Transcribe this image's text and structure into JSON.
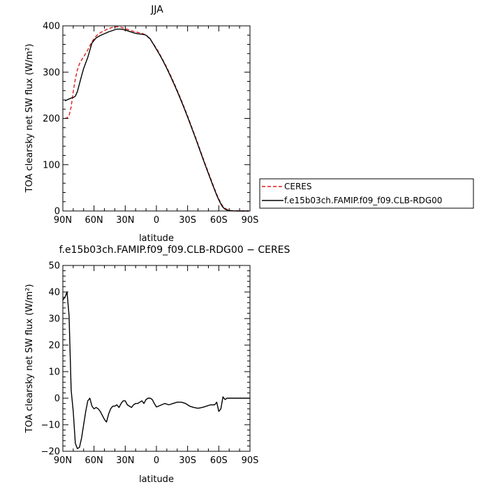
{
  "chart_data": [
    {
      "type": "line",
      "title": "JJA",
      "xlabel": "latitude",
      "ylabel": "TOA clearsky net SW flux (W/m²)",
      "xlim": [
        90,
        -90
      ],
      "ylim": [
        0,
        400
      ],
      "x_ticks": [
        90,
        60,
        30,
        0,
        -30,
        -60,
        -90
      ],
      "x_tick_labels": [
        "90N",
        "60N",
        "30N",
        "0",
        "30S",
        "60S",
        "90S"
      ],
      "y_ticks": [
        0,
        100,
        200,
        300,
        400
      ],
      "y_tick_labels": [
        "0",
        "100",
        "200",
        "300",
        "400"
      ],
      "grid": false,
      "legend_position": "right",
      "series": [
        {
          "name": "CERES",
          "color": "#e01a1a",
          "dash": "dashed",
          "x": [
            88,
            86,
            84,
            82,
            80,
            78,
            76,
            74,
            72,
            70,
            66,
            62,
            58,
            54,
            50,
            46,
            42,
            38,
            34,
            30,
            26,
            22,
            18,
            14,
            10,
            6,
            2,
            -2,
            -6,
            -10,
            -14,
            -18,
            -22,
            -26,
            -30,
            -34,
            -38,
            -42,
            -46,
            -50,
            -54,
            -58,
            -60,
            -62,
            -64,
            -66,
            -68,
            -70,
            -72,
            -75,
            -80,
            -85,
            -89
          ],
          "y": [
            200,
            201,
            206,
            225,
            258,
            285,
            305,
            318,
            326,
            333,
            348,
            366,
            378,
            385,
            390,
            394,
            397,
            398,
            397,
            394,
            391,
            388,
            386,
            384,
            380,
            371,
            358,
            344,
            327,
            310,
            291,
            271,
            250,
            228,
            205,
            181,
            157,
            132,
            107,
            83,
            59,
            36,
            26,
            17,
            10,
            6,
            3,
            1.5,
            0.8,
            0.3,
            0.1,
            0,
            0
          ]
        },
        {
          "name": "f.e15b03ch.FAMIP.f09_f09.CLB-RDG00",
          "color": "#000000",
          "dash": "solid",
          "x": [
            88,
            86,
            84,
            82,
            80,
            78,
            76,
            74,
            72,
            70,
            66,
            62,
            58,
            54,
            50,
            46,
            42,
            38,
            34,
            30,
            26,
            22,
            18,
            14,
            10,
            6,
            2,
            -2,
            -6,
            -10,
            -14,
            -18,
            -22,
            -26,
            -30,
            -34,
            -38,
            -42,
            -46,
            -50,
            -54,
            -58,
            -60,
            -62,
            -64,
            -66,
            -68,
            -70,
            -72,
            -75,
            -80,
            -85,
            -89
          ],
          "y": [
            238,
            240,
            242,
            244,
            245,
            248,
            258,
            275,
            292,
            308,
            332,
            363,
            374,
            379,
            383,
            387,
            390,
            393,
            393,
            391,
            388,
            385,
            383,
            382,
            380,
            372,
            357,
            342,
            326,
            308,
            289,
            269,
            248,
            226,
            203,
            179,
            155,
            130,
            105,
            81,
            57,
            34,
            24,
            15,
            8,
            4,
            2,
            1,
            0.4,
            0.1,
            0,
            0,
            0
          ]
        }
      ]
    },
    {
      "type": "line",
      "title": "f.e15b03ch.FAMIP.f09_f09.CLB-RDG00 − CERES",
      "xlabel": "latitude",
      "ylabel": "TOA clearsky net SW flux (W/m²)",
      "xlim": [
        90,
        -90
      ],
      "ylim": [
        -20,
        50
      ],
      "x_ticks": [
        90,
        60,
        30,
        0,
        -30,
        -60,
        -90
      ],
      "x_tick_labels": [
        "90N",
        "60N",
        "30N",
        "0",
        "30S",
        "60S",
        "90S"
      ],
      "y_ticks": [
        -20,
        -10,
        0,
        10,
        20,
        30,
        40,
        50
      ],
      "y_tick_labels": [
        "−20",
        "−10",
        "0",
        "10",
        "20",
        "30",
        "40",
        "50"
      ],
      "grid": false,
      "series": [
        {
          "color": "#000000",
          "dash": "solid",
          "x": [
            90,
            88,
            86,
            84,
            82,
            80,
            78,
            76,
            74,
            72,
            70,
            68,
            66,
            64,
            62,
            60,
            58,
            56,
            54,
            52,
            50,
            48,
            46,
            44,
            42,
            40,
            38,
            36,
            34,
            32,
            30,
            28,
            26,
            24,
            22,
            20,
            18,
            16,
            14,
            12,
            10,
            8,
            6,
            4,
            2,
            0,
            -2,
            -5,
            -8,
            -12,
            -16,
            -20,
            -24,
            -28,
            -32,
            -36,
            -40,
            -44,
            -48,
            -52,
            -56,
            -58,
            -60,
            -62,
            -64,
            -66,
            -68,
            -70,
            -72,
            -76,
            -80,
            -85,
            -90
          ],
          "y": [
            37,
            38,
            40,
            31,
            3,
            -5,
            -17,
            -19,
            -18.5,
            -15,
            -10,
            -5,
            -1,
            0,
            -3,
            -4,
            -3.5,
            -4,
            -5,
            -6.5,
            -8,
            -9,
            -6,
            -4,
            -3,
            -3,
            -2.5,
            -3.5,
            -2,
            -1,
            -1,
            -2.5,
            -3,
            -3.5,
            -2.5,
            -2,
            -2,
            -1.5,
            -1,
            -2,
            -0.5,
            0,
            0,
            -0.5,
            -2,
            -3.3,
            -3,
            -2.5,
            -2,
            -2.5,
            -2,
            -1.5,
            -1.5,
            -2,
            -3,
            -3.5,
            -3.8,
            -3.5,
            -3,
            -2.5,
            -2.5,
            -1.5,
            -5,
            -4,
            0.5,
            -0.5,
            0,
            0,
            0,
            0,
            0,
            0,
            0
          ]
        }
      ]
    }
  ]
}
